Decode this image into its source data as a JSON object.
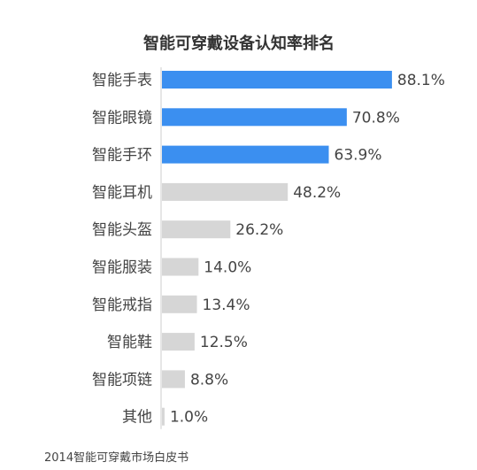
{
  "chart_data": {
    "type": "bar",
    "orientation": "horizontal",
    "title": "智能可穿戴设备认知率排名",
    "categories": [
      "智能手表",
      "智能眼镜",
      "智能手环",
      "智能耳机",
      "智能头盔",
      "智能服装",
      "智能戒指",
      "智能鞋",
      "智能项链",
      "其他"
    ],
    "values": [
      88.1,
      70.8,
      63.9,
      48.2,
      26.2,
      14.0,
      13.4,
      12.5,
      8.8,
      1.0
    ],
    "value_labels": [
      "88.1%",
      "70.8%",
      "63.9%",
      "48.2%",
      "26.2%",
      "14.0%",
      "13.4%",
      "12.5%",
      "8.8%",
      "1.0%"
    ],
    "highlight_count": 3,
    "xlim": [
      0,
      100
    ],
    "grid": false,
    "legend": "none",
    "source": "2014智能可穿戴市场白皮书"
  },
  "colors": {
    "highlight": "#3b8ff0",
    "default": "#d6d6d6",
    "axis": "#cccccc",
    "text": "#444444"
  }
}
